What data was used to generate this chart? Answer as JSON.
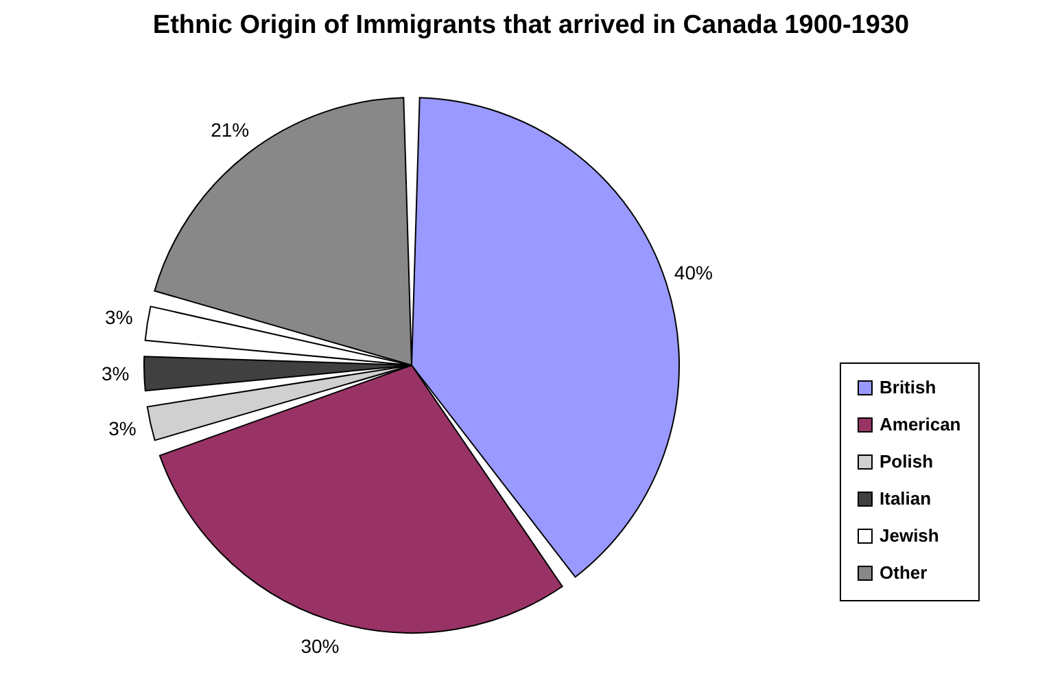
{
  "chart_data": {
    "type": "pie",
    "title": "Ethnic Origin of Immigrants that arrived in Canada 1900-1930",
    "categories": [
      "British",
      "American",
      "Polish",
      "Italian",
      "Jewish",
      "Other"
    ],
    "values": [
      40,
      30,
      3,
      3,
      3,
      21
    ],
    "value_labels": [
      "40%",
      "30%",
      "3%",
      "3%",
      "3%",
      "21%"
    ],
    "colors": [
      "#9999ff",
      "#993366",
      "#d0d0d0",
      "#404040",
      "#ffffff",
      "#888888"
    ],
    "legend": "right"
  }
}
